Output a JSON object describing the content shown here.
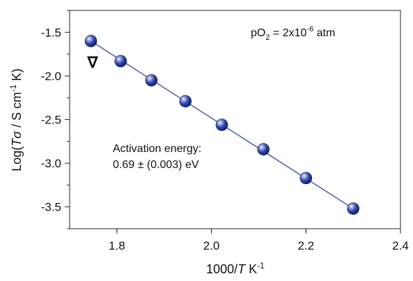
{
  "chart_data": {
    "type": "scatter",
    "xlim": [
      1.7,
      2.4
    ],
    "ylim": [
      -3.75,
      -1.25
    ],
    "xticks": [
      1.8,
      2.0,
      2.2,
      2.4
    ],
    "xtick_labels": [
      "1.8",
      "2.0",
      "2.2",
      "2.4"
    ],
    "yticks": [
      -1.5,
      -2.0,
      -2.5,
      -3.0,
      -3.5
    ],
    "ytick_labels": [
      "-1.5",
      "-2.0",
      "-2.5",
      "-3.0",
      "-3.5"
    ],
    "xlabel": {
      "prefix": "1000/",
      "italic": "T",
      "unit": " K",
      "sup": "-1"
    },
    "ylabel": {
      "prefix": "Log(",
      "italic": "Tσ",
      "unit": " / S cm",
      "sup1": "-1",
      "suffix": " K)"
    },
    "series": [
      {
        "marker": "sphere",
        "color": "#2e3f9e",
        "x": [
          1.745,
          1.808,
          1.873,
          1.945,
          2.022,
          2.11,
          2.2,
          2.3
        ],
        "y": [
          -1.6,
          -1.83,
          -2.05,
          -2.29,
          -2.56,
          -2.84,
          -3.17,
          -3.52
        ]
      }
    ],
    "fit_line": {
      "x": [
        1.745,
        2.3
      ],
      "y": [
        -1.6,
        -3.52
      ],
      "color": "#3a4a9a"
    },
    "annotations": {
      "condition": {
        "base": "pO",
        "sub": "2",
        "mid": " = 2x10",
        "sup": "-6",
        "tail": " atm"
      },
      "activation_line1": "Activation energy:",
      "activation_line2": "0.69 ± (0.003) eV",
      "marker_symbol": "∇"
    }
  }
}
